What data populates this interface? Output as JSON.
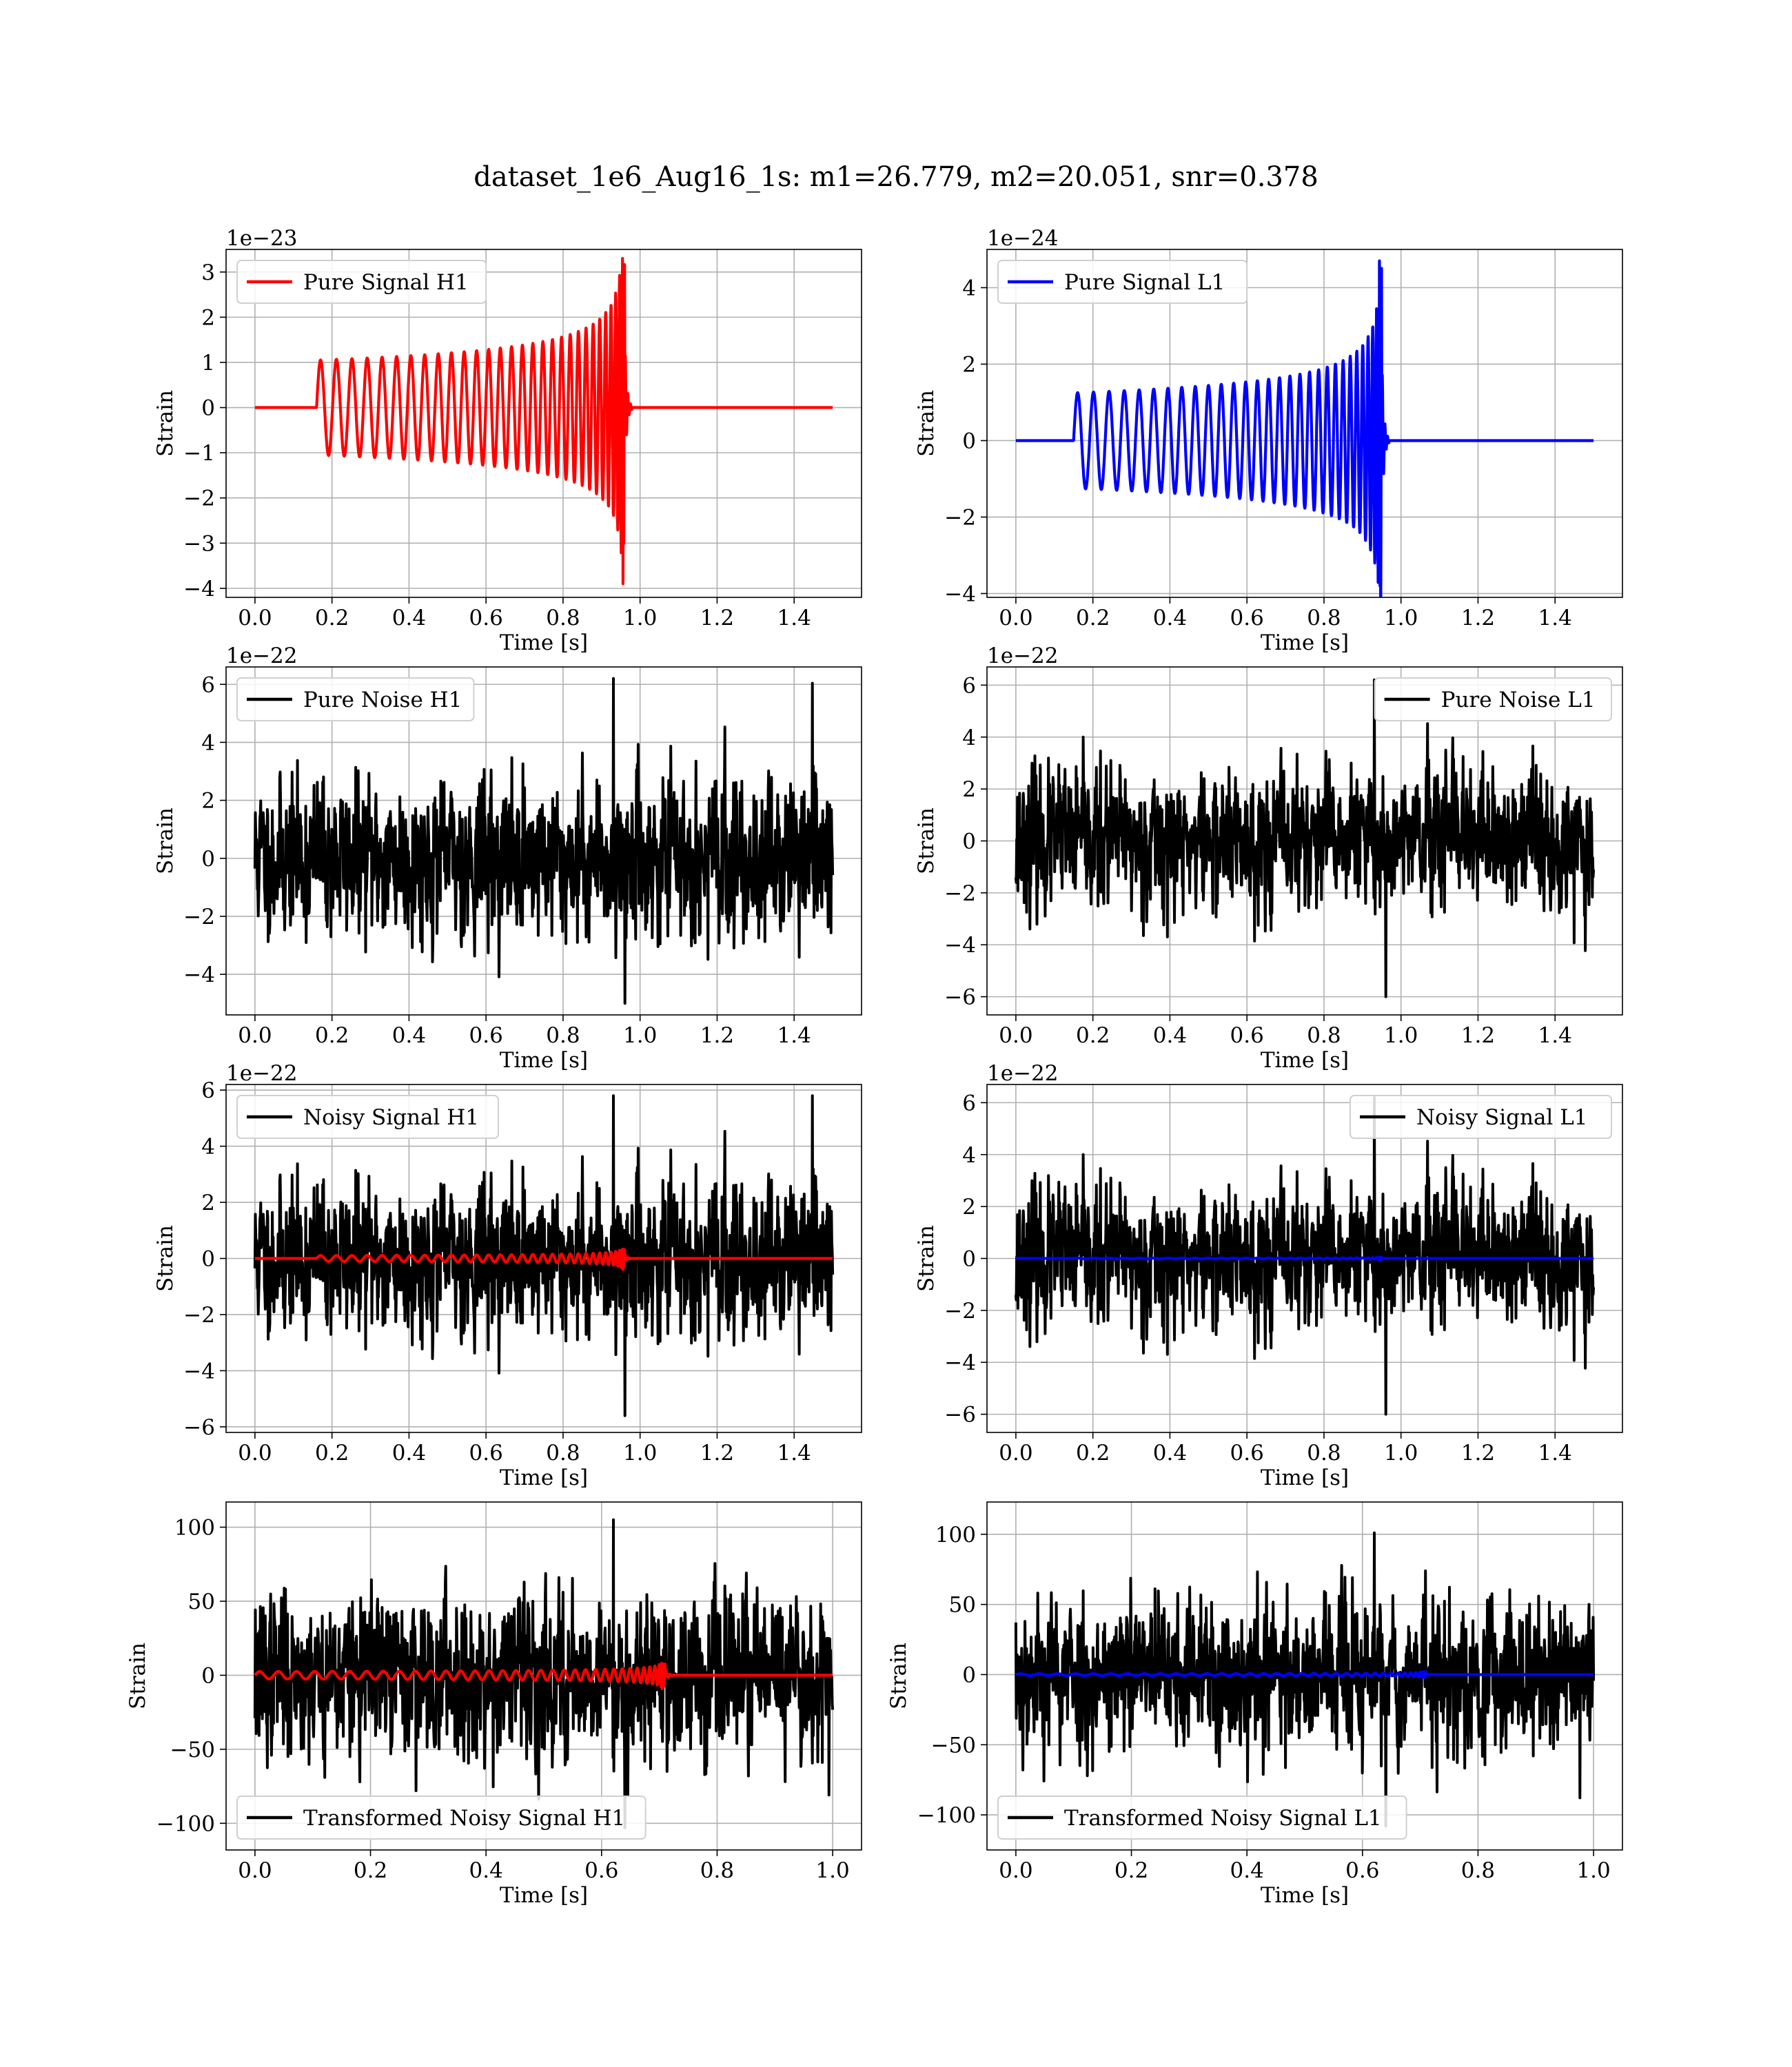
{
  "figure_title": "dataset_1e6_Aug16_1s: m1=26.779, m2=20.051, snr=0.378",
  "colors": {
    "h1_signal": "#ff0000",
    "l1_signal": "#0000ff",
    "noise": "#000000"
  },
  "chart_data": [
    {
      "type": "line",
      "id": "pure-signal-h1",
      "xlabel": "Time [s]",
      "ylabel": "Strain",
      "offset_text": "1e−23",
      "xlim": [
        -0.075,
        1.575
      ],
      "ylim": [
        -4.2,
        3.5
      ],
      "xticks": [
        0.0,
        0.2,
        0.4,
        0.6,
        0.8,
        1.0,
        1.2,
        1.4
      ],
      "xtick_labels": [
        "0.0",
        "0.2",
        "0.4",
        "0.6",
        "0.8",
        "1.0",
        "1.2",
        "1.4"
      ],
      "yticks": [
        -4,
        -3,
        -2,
        -1,
        0,
        1,
        2,
        3
      ],
      "ytick_labels": [
        "−4",
        "−3",
        "−2",
        "−1",
        "0",
        "1",
        "2",
        "3"
      ],
      "grid": true,
      "legend_position": "upper left",
      "series": [
        {
          "name": "Pure Signal H1",
          "color": "#ff0000",
          "kind": "chirp",
          "t_range": [
            0.0,
            1.5
          ],
          "start": 0.16,
          "merger": 0.96,
          "amp_start": 1.05,
          "amp_peak": 3.3,
          "amp_min": -3.9,
          "cycles": 30
        }
      ]
    },
    {
      "type": "line",
      "id": "pure-signal-l1",
      "xlabel": "Time [s]",
      "ylabel": "Strain",
      "offset_text": "1e−24",
      "xlim": [
        -0.075,
        1.575
      ],
      "ylim": [
        -4.1,
        5.0
      ],
      "xticks": [
        0.0,
        0.2,
        0.4,
        0.6,
        0.8,
        1.0,
        1.2,
        1.4
      ],
      "xtick_labels": [
        "0.0",
        "0.2",
        "0.4",
        "0.6",
        "0.8",
        "1.0",
        "1.2",
        "1.4"
      ],
      "yticks": [
        -4,
        -2,
        0,
        2,
        4
      ],
      "ytick_labels": [
        "−4",
        "−2",
        "0",
        "2",
        "4"
      ],
      "grid": true,
      "legend_position": "upper left",
      "series": [
        {
          "name": "Pure Signal L1",
          "color": "#0000ff",
          "kind": "chirp",
          "t_range": [
            0.0,
            1.5
          ],
          "start": 0.15,
          "merger": 0.95,
          "amp_start": 1.25,
          "amp_peak": 4.7,
          "amp_min": -3.8,
          "cycles": 30
        }
      ]
    },
    {
      "type": "line",
      "id": "pure-noise-h1",
      "xlabel": "Time [s]",
      "ylabel": "Strain",
      "offset_text": "1e−22",
      "xlim": [
        -0.075,
        1.575
      ],
      "ylim": [
        -5.4,
        6.6
      ],
      "xticks": [
        0.0,
        0.2,
        0.4,
        0.6,
        0.8,
        1.0,
        1.2,
        1.4
      ],
      "xtick_labels": [
        "0.0",
        "0.2",
        "0.4",
        "0.6",
        "0.8",
        "1.0",
        "1.2",
        "1.4"
      ],
      "yticks": [
        -4,
        -2,
        0,
        2,
        4,
        6
      ],
      "ytick_labels": [
        "−4",
        "−2",
        "0",
        "2",
        "4",
        "6"
      ],
      "grid": true,
      "legend_position": "upper left",
      "series": [
        {
          "name": "Pure Noise H1",
          "color": "#000000",
          "kind": "noise",
          "t_range": [
            0.0,
            1.5
          ],
          "seed": 11,
          "sigma": 1.55,
          "max": 6.2,
          "min": -5.0
        }
      ]
    },
    {
      "type": "line",
      "id": "pure-noise-l1",
      "xlabel": "Time [s]",
      "ylabel": "Strain",
      "offset_text": "1e−22",
      "xlim": [
        -0.075,
        1.575
      ],
      "ylim": [
        -6.7,
        6.7
      ],
      "xticks": [
        0.0,
        0.2,
        0.4,
        0.6,
        0.8,
        1.0,
        1.2,
        1.4
      ],
      "xtick_labels": [
        "0.0",
        "0.2",
        "0.4",
        "0.6",
        "0.8",
        "1.0",
        "1.2",
        "1.4"
      ],
      "yticks": [
        -6,
        -4,
        -2,
        0,
        2,
        4,
        6
      ],
      "ytick_labels": [
        "−6",
        "−4",
        "−2",
        "0",
        "2",
        "4",
        "6"
      ],
      "grid": true,
      "legend_position": "upper right",
      "series": [
        {
          "name": "Pure Noise L1",
          "color": "#000000",
          "kind": "noise",
          "t_range": [
            0.0,
            1.5
          ],
          "seed": 23,
          "sigma": 1.55,
          "max": 6.2,
          "min": -6.0
        }
      ]
    },
    {
      "type": "line",
      "id": "noisy-signal-h1",
      "xlabel": "Time [s]",
      "ylabel": "Strain",
      "offset_text": "1e−22",
      "xlim": [
        -0.075,
        1.575
      ],
      "ylim": [
        -6.2,
        6.2
      ],
      "xticks": [
        0.0,
        0.2,
        0.4,
        0.6,
        0.8,
        1.0,
        1.2,
        1.4
      ],
      "xtick_labels": [
        "0.0",
        "0.2",
        "0.4",
        "0.6",
        "0.8",
        "1.0",
        "1.2",
        "1.4"
      ],
      "yticks": [
        -6,
        -4,
        -2,
        0,
        2,
        4,
        6
      ],
      "ytick_labels": [
        "−6",
        "−4",
        "−2",
        "0",
        "2",
        "4",
        "6"
      ],
      "grid": true,
      "legend_position": "upper left",
      "series": [
        {
          "name": "Noisy Signal H1",
          "color": "#000000",
          "kind": "noise",
          "t_range": [
            0.0,
            1.5
          ],
          "seed": 11,
          "sigma": 1.55,
          "max": 5.8,
          "min": -5.6
        },
        {
          "color": "#ff0000",
          "kind": "chirp",
          "t_range": [
            0.0,
            1.5
          ],
          "start": 0.16,
          "merger": 0.96,
          "amp_start": 0.105,
          "amp_peak": 0.33,
          "amp_min": -0.39,
          "cycles": 30
        }
      ]
    },
    {
      "type": "line",
      "id": "noisy-signal-l1",
      "xlabel": "Time [s]",
      "ylabel": "Strain",
      "offset_text": "1e−22",
      "xlim": [
        -0.075,
        1.575
      ],
      "ylim": [
        -6.7,
        6.7
      ],
      "xticks": [
        0.0,
        0.2,
        0.4,
        0.6,
        0.8,
        1.0,
        1.2,
        1.4
      ],
      "xtick_labels": [
        "0.0",
        "0.2",
        "0.4",
        "0.6",
        "0.8",
        "1.0",
        "1.2",
        "1.4"
      ],
      "yticks": [
        -6,
        -4,
        -2,
        0,
        2,
        4,
        6
      ],
      "ytick_labels": [
        "−6",
        "−4",
        "−2",
        "0",
        "2",
        "4",
        "6"
      ],
      "grid": true,
      "legend_position": "upper right",
      "series": [
        {
          "name": "Noisy Signal L1",
          "color": "#000000",
          "kind": "noise",
          "t_range": [
            0.0,
            1.5
          ],
          "seed": 23,
          "sigma": 1.55,
          "max": 6.2,
          "min": -6.0
        },
        {
          "color": "#0000ff",
          "kind": "chirp",
          "t_range": [
            0.0,
            1.5
          ],
          "start": 0.15,
          "merger": 0.95,
          "amp_start": 0.0125,
          "amp_peak": 0.047,
          "amp_min": -0.038,
          "cycles": 30
        }
      ]
    },
    {
      "type": "line",
      "id": "transformed-noisy-signal-h1",
      "xlabel": "Time [s]",
      "ylabel": "Strain",
      "xlim": [
        -0.05,
        1.05
      ],
      "ylim": [
        -118,
        117
      ],
      "xticks": [
        0.0,
        0.2,
        0.4,
        0.6,
        0.8,
        1.0
      ],
      "xtick_labels": [
        "0.0",
        "0.2",
        "0.4",
        "0.6",
        "0.8",
        "1.0"
      ],
      "yticks": [
        -100,
        -50,
        0,
        50,
        100
      ],
      "ytick_labels": [
        "−100",
        "−50",
        "0",
        "50",
        "100"
      ],
      "grid": true,
      "legend_position": "lower left",
      "series": [
        {
          "name": "Transformed Noisy Signal H1",
          "color": "#000000",
          "kind": "noise",
          "t_range": [
            0.0,
            1.0
          ],
          "seed": 37,
          "sigma": 32,
          "max": 105,
          "min": -103
        },
        {
          "color": "#ff0000",
          "kind": "chirp",
          "t_range": [
            0.0,
            1.0
          ],
          "start": 0.0,
          "merger": 0.71,
          "amp_start": 2.5,
          "amp_peak": 8,
          "amp_min": -9,
          "cycles": 34
        }
      ]
    },
    {
      "type": "line",
      "id": "transformed-noisy-signal-l1",
      "xlabel": "Time [s]",
      "ylabel": "Strain",
      "xlim": [
        -0.05,
        1.05
      ],
      "ylim": [
        -125,
        123
      ],
      "xticks": [
        0.0,
        0.2,
        0.4,
        0.6,
        0.8,
        1.0
      ],
      "xtick_labels": [
        "0.0",
        "0.2",
        "0.4",
        "0.6",
        "0.8",
        "1.0"
      ],
      "yticks": [
        -100,
        -50,
        0,
        50,
        100
      ],
      "ytick_labels": [
        "−100",
        "−50",
        "0",
        "50",
        "100"
      ],
      "grid": true,
      "legend_position": "lower left",
      "series": [
        {
          "name": "Transformed Noisy Signal L1",
          "color": "#000000",
          "kind": "noise",
          "t_range": [
            0.0,
            1.0
          ],
          "seed": 53,
          "sigma": 32,
          "max": 101,
          "min": -108
        },
        {
          "color": "#0000ff",
          "kind": "chirp",
          "t_range": [
            0.0,
            1.0
          ],
          "start": 0.0,
          "merger": 0.71,
          "amp_start": 0.6,
          "amp_peak": 2,
          "amp_min": -2,
          "cycles": 34
        }
      ]
    }
  ]
}
